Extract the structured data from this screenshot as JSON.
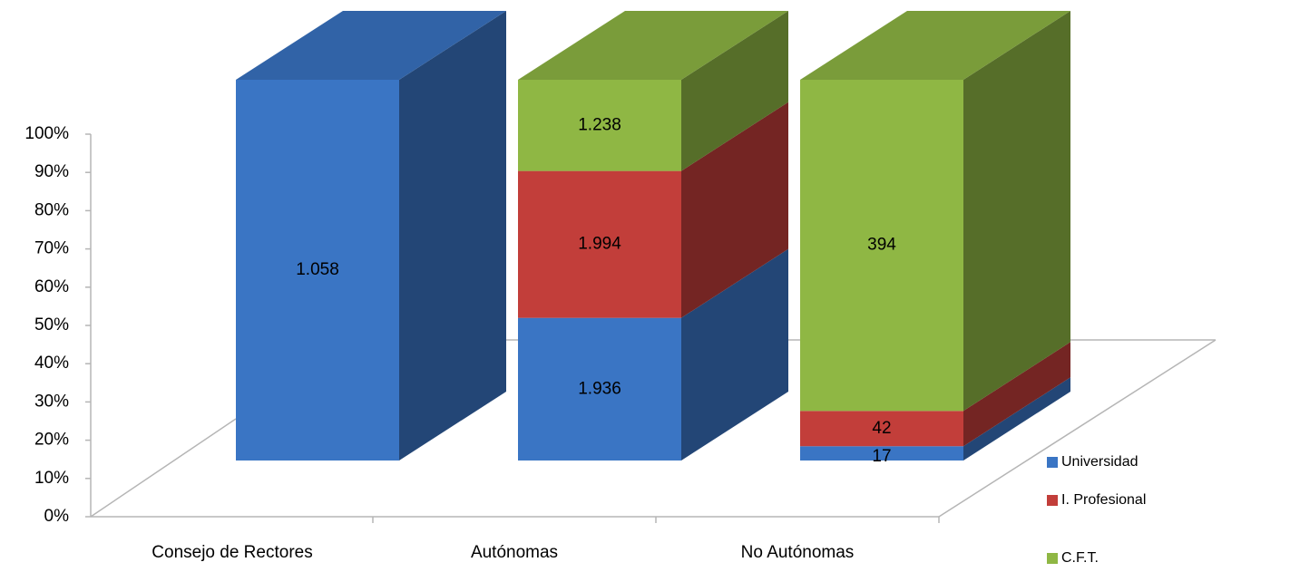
{
  "chart_data": {
    "type": "bar3d_stacked_percent",
    "categories": [
      "Consejo de Rectores",
      "Autónomas",
      "No Autónomas"
    ],
    "series": [
      {
        "name": "Universidad",
        "color": "#3a75c4",
        "values": [
          1058,
          1936,
          17
        ],
        "value_labels": [
          "1.058",
          "1.936",
          "17"
        ]
      },
      {
        "name": "I. Profesional",
        "color": "#c23e3a",
        "values": [
          null,
          1994,
          42
        ],
        "value_labels": [
          null,
          "1.994",
          "42"
        ]
      },
      {
        "name": "C.F.T.",
        "color": "#8fb744",
        "values": [
          null,
          1238,
          394
        ],
        "value_labels": [
          null,
          "1.238",
          "394"
        ]
      }
    ],
    "ylim": [
      0,
      100
    ],
    "yticks": [
      {
        "value": 0,
        "label": "0%"
      },
      {
        "value": 10,
        "label": "10%"
      },
      {
        "value": 20,
        "label": "20%"
      },
      {
        "value": 30,
        "label": "30%"
      },
      {
        "value": 40,
        "label": "40%"
      },
      {
        "value": 50,
        "label": "50%"
      },
      {
        "value": 60,
        "label": "60%"
      },
      {
        "value": 70,
        "label": "70%"
      },
      {
        "value": 80,
        "label": "80%"
      },
      {
        "value": 90,
        "label": "90%"
      },
      {
        "value": 100,
        "label": "100%"
      }
    ],
    "legend": "right"
  }
}
